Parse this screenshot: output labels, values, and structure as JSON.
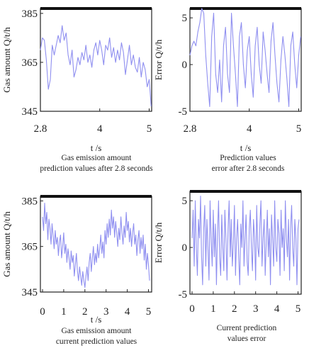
{
  "chart_data": [
    {
      "type": "line",
      "xlabel": "t /s",
      "ylabel": "Gas amount Q/t/h",
      "caption": [
        "Gas emission amount",
        "prediction values after 2.8 seconds"
      ],
      "xlim": [
        2.8,
        5.05
      ],
      "ylim": [
        345,
        387
      ],
      "xticks": [
        "2.8",
        "4",
        "5"
      ],
      "xtick_values": [
        2.8,
        4,
        5
      ],
      "yticks": [
        "385",
        "365",
        "345"
      ],
      "ytick_values": [
        385,
        365,
        345
      ],
      "series": [
        {
          "x": [
            2.8,
            2.84,
            2.88,
            2.92,
            2.96,
            3.0,
            3.04,
            3.08,
            3.12,
            3.16,
            3.2,
            3.24,
            3.28,
            3.32,
            3.36,
            3.4,
            3.44,
            3.48,
            3.52,
            3.56,
            3.6,
            3.64,
            3.68,
            3.72,
            3.76,
            3.8,
            3.84,
            3.88,
            3.92,
            3.96,
            4.0,
            4.04,
            4.08,
            4.12,
            4.16,
            4.2,
            4.24,
            4.28,
            4.32,
            4.36,
            4.4,
            4.44,
            4.48,
            4.52,
            4.56,
            4.6,
            4.64,
            4.68,
            4.72,
            4.76,
            4.8,
            4.84,
            4.88,
            4.92,
            4.96,
            5.0,
            5.04
          ],
          "values": [
            370,
            375,
            374,
            366,
            354,
            358,
            372,
            368,
            372,
            376,
            373,
            380,
            374,
            377,
            368,
            364,
            370,
            359,
            362,
            367,
            364,
            369,
            366,
            372,
            365,
            368,
            363,
            370,
            373,
            368,
            374,
            370,
            364,
            372,
            370,
            375,
            367,
            371,
            365,
            370,
            366,
            373,
            369,
            360,
            366,
            372,
            364,
            368,
            363,
            361,
            367,
            359,
            365,
            362,
            355,
            358,
            347
          ]
        }
      ]
    },
    {
      "type": "line",
      "xlabel": "t /s",
      "ylabel": "Error Q/t/h",
      "caption": [
        "Prediction values",
        "error after 2.8 seconds"
      ],
      "xlim": [
        2.8,
        5.05
      ],
      "ylim": [
        -5,
        6
      ],
      "xticks": [
        "2.8",
        "4",
        "5"
      ],
      "xtick_values": [
        2.8,
        4,
        5
      ],
      "yticks": [
        "5",
        "0",
        "-5"
      ],
      "ytick_values": [
        5,
        0,
        -5
      ],
      "series": [
        {
          "x": [
            2.8,
            2.84,
            2.88,
            2.92,
            2.96,
            3.0,
            3.04,
            3.08,
            3.12,
            3.16,
            3.2,
            3.24,
            3.28,
            3.32,
            3.36,
            3.4,
            3.44,
            3.48,
            3.52,
            3.56,
            3.6,
            3.64,
            3.68,
            3.72,
            3.76,
            3.8,
            3.84,
            3.88,
            3.92,
            3.96,
            4.0,
            4.04,
            4.08,
            4.12,
            4.16,
            4.2,
            4.24,
            4.28,
            4.32,
            4.36,
            4.4,
            4.44,
            4.48,
            4.52,
            4.56,
            4.6,
            4.64,
            4.68,
            4.72,
            4.76,
            4.8,
            4.84,
            4.88,
            4.92,
            4.96,
            5.0,
            5.04
          ],
          "values": [
            1,
            2,
            2.5,
            2,
            3.5,
            4.5,
            6,
            5.5,
            1,
            -2,
            -4.5,
            3,
            5.5,
            -1,
            -3,
            0.5,
            -4,
            2,
            4,
            -1,
            -3,
            5.5,
            2,
            -1,
            -4.5,
            3,
            4.5,
            0,
            -2.5,
            1.5,
            3,
            -1,
            -3.5,
            2,
            4,
            0,
            -2,
            3.5,
            1.5,
            -1,
            -3,
            2.5,
            4.5,
            1,
            -2,
            -4,
            0.5,
            3,
            1,
            -1.5,
            -4.5,
            2,
            3.5,
            0,
            -2.5,
            1,
            3
          ]
        }
      ]
    },
    {
      "type": "line",
      "xlabel": "t /s",
      "ylabel": "Gas amount Q/t/h",
      "caption": [
        "Gas emission amount",
        "current prediction values"
      ],
      "xlim": [
        -0.1,
        5.15
      ],
      "ylim": [
        345,
        387
      ],
      "xticks": [
        "0",
        "1",
        "2",
        "3",
        "4",
        "5"
      ],
      "xtick_values": [
        0,
        1,
        2,
        3,
        4,
        5
      ],
      "yticks": [
        "385",
        "365",
        "345"
      ],
      "ytick_values": [
        385,
        365,
        345
      ],
      "series": [
        {
          "x": [
            0,
            0.05,
            0.1,
            0.15,
            0.2,
            0.25,
            0.3,
            0.35,
            0.4,
            0.45,
            0.5,
            0.55,
            0.6,
            0.65,
            0.7,
            0.75,
            0.8,
            0.85,
            0.9,
            0.95,
            1.0,
            1.05,
            1.1,
            1.15,
            1.2,
            1.25,
            1.3,
            1.35,
            1.4,
            1.45,
            1.5,
            1.55,
            1.6,
            1.65,
            1.7,
            1.75,
            1.8,
            1.85,
            1.9,
            1.95,
            2.0,
            2.05,
            2.1,
            2.15,
            2.2,
            2.25,
            2.3,
            2.35,
            2.4,
            2.45,
            2.5,
            2.55,
            2.6,
            2.65,
            2.7,
            2.75,
            2.8,
            2.85,
            2.9,
            2.95,
            3.0,
            3.05,
            3.1,
            3.15,
            3.2,
            3.25,
            3.3,
            3.35,
            3.4,
            3.45,
            3.5,
            3.55,
            3.6,
            3.65,
            3.7,
            3.75,
            3.8,
            3.85,
            3.9,
            3.95,
            4.0,
            4.05,
            4.1,
            4.15,
            4.2,
            4.25,
            4.3,
            4.35,
            4.4,
            4.45,
            4.5,
            4.55,
            4.6,
            4.65,
            4.7,
            4.75,
            4.8,
            4.85,
            4.9,
            4.95,
            5.0,
            5.05
          ],
          "values": [
            378,
            372,
            384,
            375,
            380,
            368,
            377,
            373,
            366,
            375,
            370,
            364,
            372,
            366,
            369,
            361,
            367,
            370,
            360,
            365,
            371,
            362,
            366,
            358,
            364,
            360,
            355,
            363,
            358,
            361,
            352,
            357,
            362,
            354,
            350,
            356,
            352,
            348,
            354,
            350,
            347,
            352,
            356,
            350,
            358,
            362,
            354,
            360,
            365,
            357,
            362,
            358,
            366,
            360,
            364,
            370,
            362,
            367,
            360,
            372,
            366,
            375,
            369,
            377,
            370,
            381,
            373,
            378,
            369,
            376,
            371,
            365,
            373,
            368,
            378,
            371,
            366,
            374,
            369,
            380,
            372,
            376,
            367,
            373,
            365,
            371,
            375,
            366,
            370,
            361,
            368,
            372,
            362,
            369,
            364,
            370,
            359,
            366,
            355,
            362,
            357,
            350
          ]
        }
      ]
    },
    {
      "type": "line",
      "xlabel": "",
      "ylabel": "Error Q/t/h",
      "caption": [
        "Current prediction",
        "values error"
      ],
      "xlim": [
        -0.1,
        5.15
      ],
      "ylim": [
        -5,
        6
      ],
      "xticks": [
        "0",
        "1",
        "2",
        "3",
        "4",
        "5"
      ],
      "xtick_values": [
        0,
        1,
        2,
        3,
        4,
        5
      ],
      "yticks": [
        "5",
        "0",
        "-5"
      ],
      "ytick_values": [
        5,
        0,
        -5
      ],
      "series": [
        {
          "x": [
            0,
            0.05,
            0.1,
            0.15,
            0.2,
            0.25,
            0.3,
            0.35,
            0.4,
            0.45,
            0.5,
            0.55,
            0.6,
            0.65,
            0.7,
            0.75,
            0.8,
            0.85,
            0.9,
            0.95,
            1.0,
            1.05,
            1.1,
            1.15,
            1.2,
            1.25,
            1.3,
            1.35,
            1.4,
            1.45,
            1.5,
            1.55,
            1.6,
            1.65,
            1.7,
            1.75,
            1.8,
            1.85,
            1.9,
            1.95,
            2.0,
            2.05,
            2.1,
            2.15,
            2.2,
            2.25,
            2.3,
            2.35,
            2.4,
            2.45,
            2.5,
            2.55,
            2.6,
            2.65,
            2.7,
            2.75,
            2.8,
            2.85,
            2.9,
            2.95,
            3.0,
            3.05,
            3.1,
            3.15,
            3.2,
            3.25,
            3.3,
            3.35,
            3.4,
            3.45,
            3.5,
            3.55,
            3.6,
            3.65,
            3.7,
            3.75,
            3.8,
            3.85,
            3.9,
            3.95,
            4.0,
            4.05,
            4.1,
            4.15,
            4.2,
            4.25,
            4.3,
            4.35,
            4.4,
            4.45,
            4.5,
            4.55,
            4.6,
            4.65,
            4.7,
            4.75,
            4.8,
            4.85,
            4.9,
            4.95,
            5.0,
            5.05
          ],
          "values": [
            1,
            4,
            -2,
            5,
            0,
            -3,
            3,
            1,
            5.5,
            -1,
            -4,
            2,
            4.5,
            -2,
            3,
            0,
            -3.5,
            5,
            1,
            -2,
            4,
            -1,
            2.5,
            -4,
            1.5,
            5,
            -1,
            -3,
            3.5,
            0,
            -2.5,
            4,
            1,
            -3.5,
            2,
            5,
            -1,
            3,
            -2,
            0.5,
            4.5,
            -3,
            1,
            3,
            -1,
            -4,
            2.5,
            0,
            5,
            -2,
            1,
            3.5,
            -1.5,
            -3,
            2,
            4,
            0,
            -2.5,
            3,
            1,
            -3.5,
            4.5,
            0,
            -1,
            2.5,
            5,
            -2,
            1,
            3,
            -3,
            0.5,
            4,
            -1,
            2,
            -4,
            3.5,
            1,
            -2,
            5,
            0,
            -1.5,
            3,
            1.5,
            -3,
            4,
            0,
            2,
            -2.5,
            5,
            1,
            -1,
            3,
            -3.5,
            2,
            4.5,
            0,
            -2,
            3,
            1,
            -4,
            2,
            3
          ]
        }
      ]
    }
  ]
}
